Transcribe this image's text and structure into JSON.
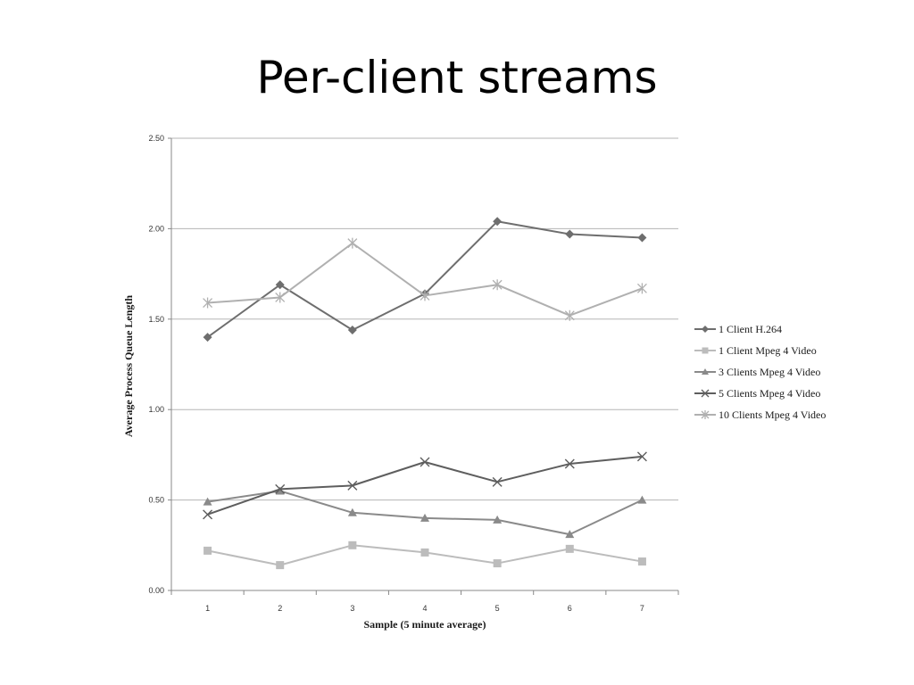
{
  "slide": {
    "title": "Per-client streams"
  },
  "chart_data": {
    "type": "line",
    "x": [
      1,
      2,
      3,
      4,
      5,
      6,
      7
    ],
    "xlabel": "Sample (5 minute average)",
    "ylabel": "Average Process Queue Length",
    "ylim": [
      0,
      2.5
    ],
    "yticks": [
      "0.00",
      "0.50",
      "1.00",
      "1.50",
      "2.00",
      "2.50"
    ],
    "grid": "horizontal",
    "legend": "right",
    "series": [
      {
        "name": "1 Client H.264",
        "marker": "diamond",
        "color": "#6e6e6e",
        "values": [
          1.4,
          1.69,
          1.44,
          1.64,
          2.04,
          1.97,
          1.95
        ]
      },
      {
        "name": "1 Client Mpeg 4 Video",
        "marker": "square",
        "color": "#bcbcbc",
        "values": [
          0.22,
          0.14,
          0.25,
          0.21,
          0.15,
          0.23,
          0.16
        ]
      },
      {
        "name": "3 Clients Mpeg 4 Video",
        "marker": "triangle",
        "color": "#8a8a8a",
        "values": [
          0.49,
          0.55,
          0.43,
          0.4,
          0.39,
          0.31,
          0.5
        ]
      },
      {
        "name": "5 Clients Mpeg 4 Video",
        "marker": "x",
        "color": "#5e5e5e",
        "values": [
          0.42,
          0.56,
          0.58,
          0.71,
          0.6,
          0.7,
          0.74
        ]
      },
      {
        "name": "10 Clients Mpeg 4 Video",
        "marker": "star",
        "color": "#b0b0b0",
        "values": [
          1.59,
          1.62,
          1.92,
          1.63,
          1.69,
          1.52,
          1.67
        ]
      }
    ]
  }
}
